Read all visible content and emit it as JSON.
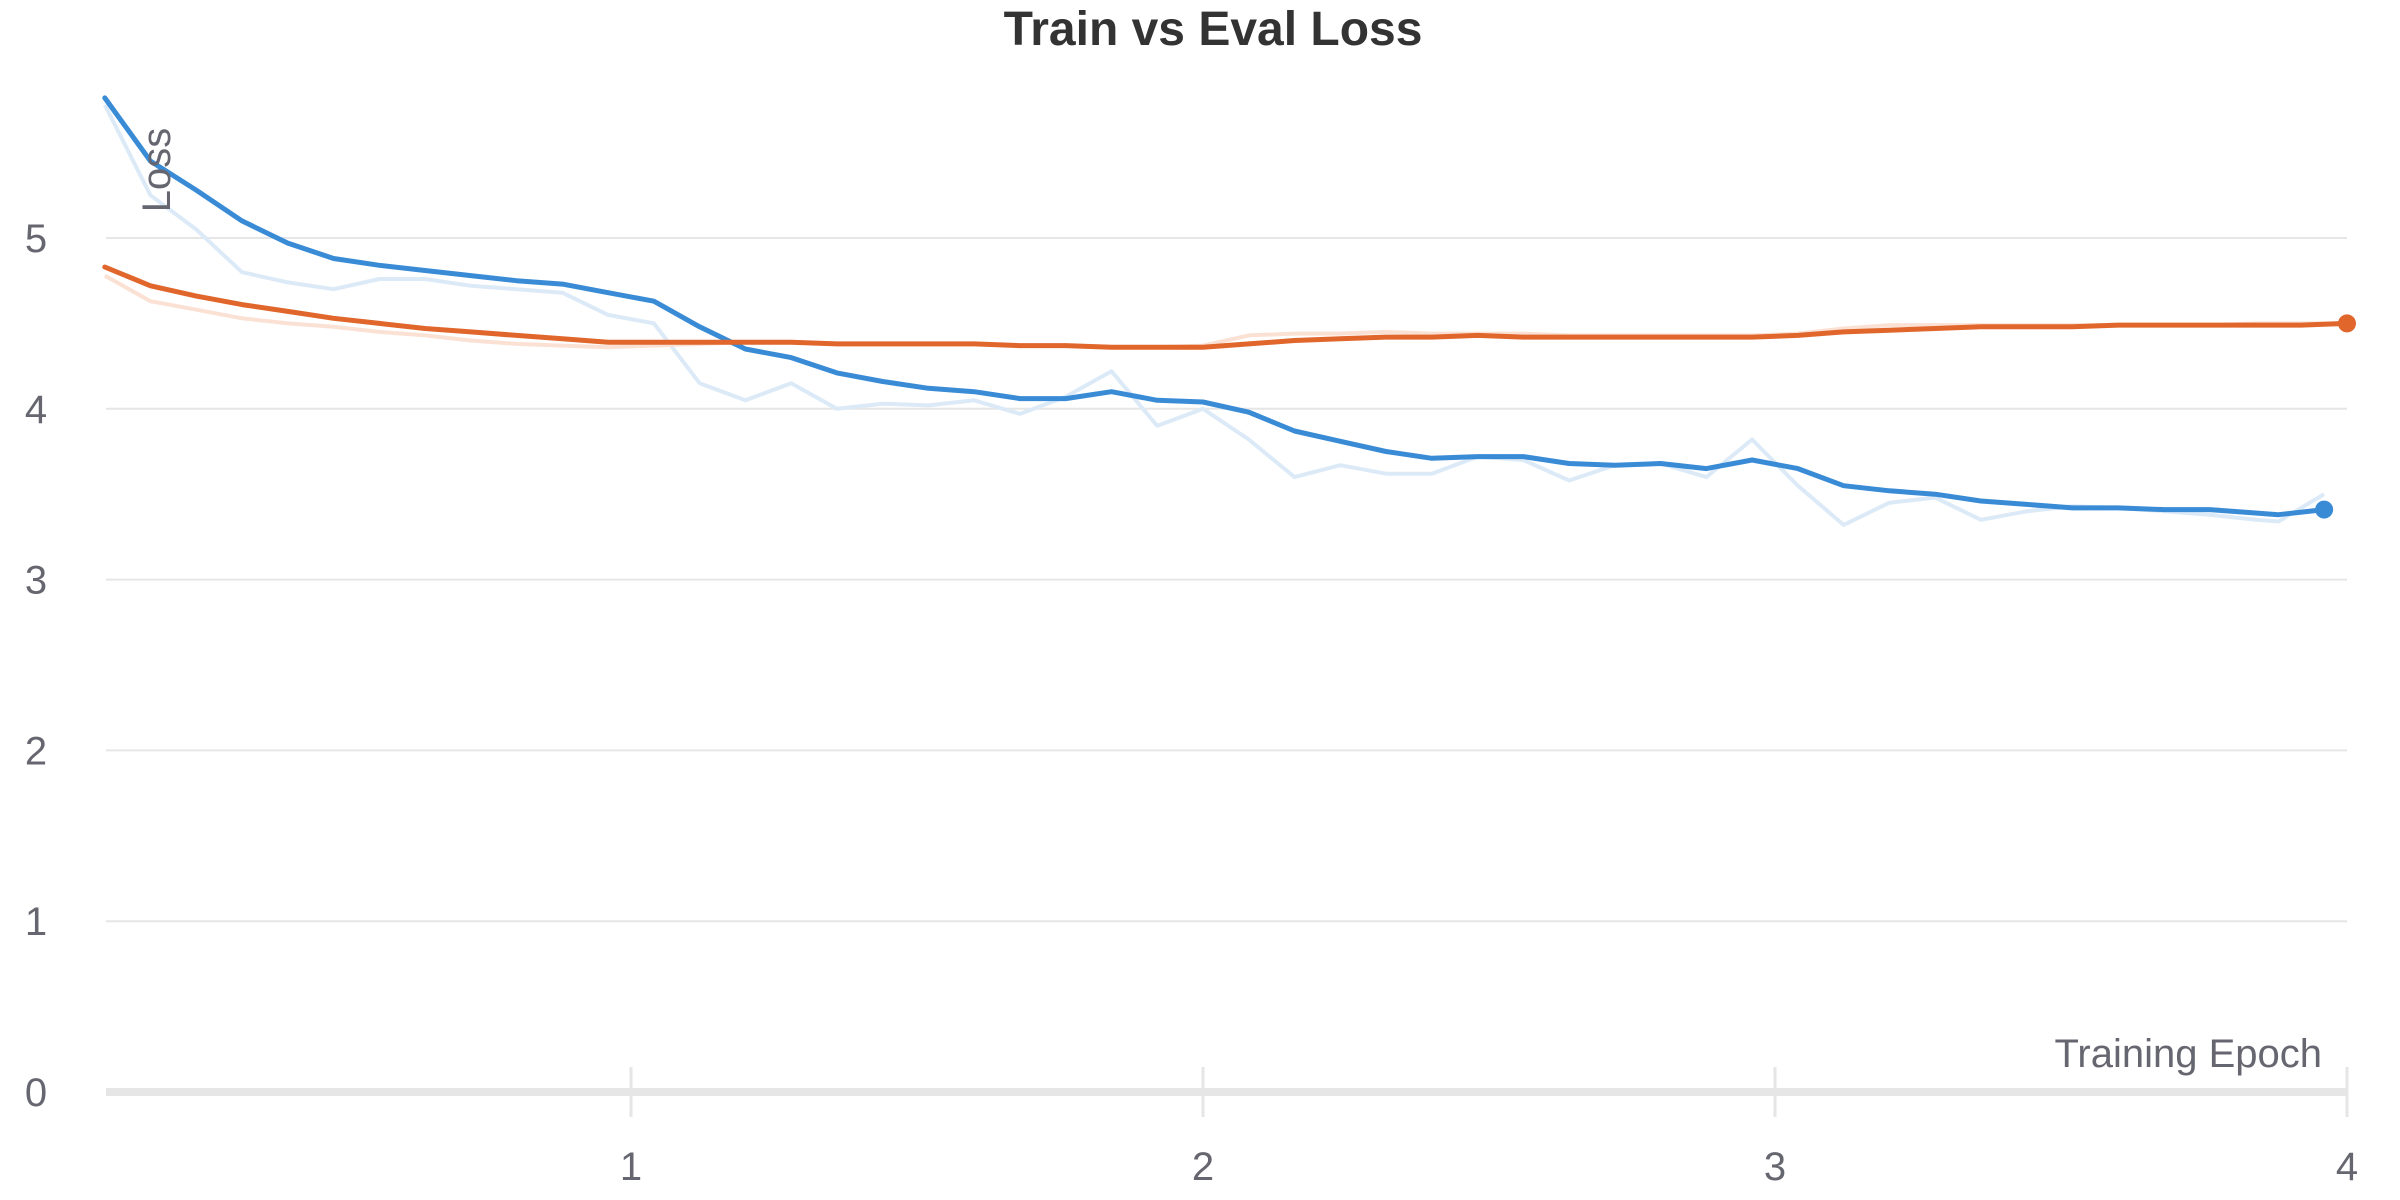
{
  "chart_data": {
    "type": "line",
    "title": "Train vs Eval Loss",
    "xlabel": "Training Epoch",
    "ylabel": "Loss",
    "xlim": [
      0.08,
      4.0
    ],
    "ylim": [
      0,
      6
    ],
    "x_ticks": [
      1,
      2,
      3,
      4
    ],
    "y_ticks": [
      0,
      1,
      2,
      3,
      4,
      5
    ],
    "grid": true,
    "legend": "none",
    "colors": {
      "train": "#3a8bd6",
      "eval": "#e0662c",
      "train_raw": "#dceaf8",
      "eval_raw": "#fbe1d4",
      "grid": "#e6e6e6",
      "axis": "#e6e6e6"
    },
    "series": [
      {
        "id": "train",
        "raw_id": "train_raw",
        "x": [
          0.08,
          0.16,
          0.24,
          0.32,
          0.4,
          0.48,
          0.56,
          0.64,
          0.72,
          0.8,
          0.88,
          0.96,
          1.04,
          1.12,
          1.2,
          1.28,
          1.36,
          1.44,
          1.52,
          1.6,
          1.68,
          1.76,
          1.84,
          1.92,
          2.0,
          2.08,
          2.16,
          2.24,
          2.32,
          2.4,
          2.48,
          2.56,
          2.64,
          2.72,
          2.8,
          2.88,
          2.96,
          3.04,
          3.12,
          3.2,
          3.28,
          3.36,
          3.44,
          3.52,
          3.6,
          3.68,
          3.76,
          3.84,
          3.88,
          3.96
        ],
        "smoothed": [
          5.82,
          5.45,
          5.28,
          5.1,
          4.97,
          4.88,
          4.84,
          4.81,
          4.78,
          4.75,
          4.73,
          4.68,
          4.63,
          4.48,
          4.35,
          4.3,
          4.21,
          4.16,
          4.12,
          4.1,
          4.06,
          4.06,
          4.1,
          4.05,
          4.04,
          3.98,
          3.87,
          3.81,
          3.75,
          3.71,
          3.72,
          3.72,
          3.68,
          3.67,
          3.68,
          3.65,
          3.7,
          3.65,
          3.55,
          3.52,
          3.5,
          3.46,
          3.44,
          3.42,
          3.42,
          3.41,
          3.41,
          3.39,
          3.38,
          3.41
        ],
        "raw": [
          5.78,
          5.25,
          5.05,
          4.8,
          4.74,
          4.7,
          4.76,
          4.76,
          4.72,
          4.7,
          4.68,
          4.55,
          4.5,
          4.15,
          4.05,
          4.15,
          4.0,
          4.03,
          4.02,
          4.05,
          3.97,
          4.07,
          4.22,
          3.9,
          4.0,
          3.82,
          3.6,
          3.67,
          3.62,
          3.62,
          3.72,
          3.7,
          3.58,
          3.67,
          3.68,
          3.6,
          3.82,
          3.55,
          3.32,
          3.45,
          3.48,
          3.35,
          3.4,
          3.43,
          3.42,
          3.4,
          3.38,
          3.35,
          3.34,
          3.5
        ]
      },
      {
        "id": "eval",
        "raw_id": "eval_raw",
        "x": [
          0.08,
          0.16,
          0.24,
          0.32,
          0.4,
          0.48,
          0.56,
          0.64,
          0.72,
          0.8,
          0.88,
          0.96,
          1.04,
          1.12,
          1.2,
          1.28,
          1.36,
          1.44,
          1.52,
          1.6,
          1.68,
          1.76,
          1.84,
          1.92,
          2.0,
          2.08,
          2.16,
          2.24,
          2.32,
          2.4,
          2.48,
          2.56,
          2.64,
          2.72,
          2.8,
          2.88,
          2.96,
          3.04,
          3.12,
          3.2,
          3.28,
          3.36,
          3.44,
          3.52,
          3.6,
          3.68,
          3.76,
          3.84,
          3.92,
          4.0
        ],
        "smoothed": [
          4.83,
          4.72,
          4.66,
          4.61,
          4.57,
          4.53,
          4.5,
          4.47,
          4.45,
          4.43,
          4.41,
          4.39,
          4.39,
          4.39,
          4.39,
          4.39,
          4.38,
          4.38,
          4.38,
          4.38,
          4.37,
          4.37,
          4.36,
          4.36,
          4.36,
          4.38,
          4.4,
          4.41,
          4.42,
          4.42,
          4.43,
          4.42,
          4.42,
          4.42,
          4.42,
          4.42,
          4.42,
          4.43,
          4.45,
          4.46,
          4.47,
          4.48,
          4.48,
          4.48,
          4.49,
          4.49,
          4.49,
          4.49,
          4.49,
          4.5
        ],
        "raw": [
          4.78,
          4.63,
          4.58,
          4.53,
          4.5,
          4.48,
          4.45,
          4.43,
          4.4,
          4.38,
          4.37,
          4.36,
          4.37,
          4.38,
          4.39,
          4.39,
          4.38,
          4.38,
          4.38,
          4.38,
          4.37,
          4.37,
          4.36,
          4.36,
          4.37,
          4.43,
          4.44,
          4.44,
          4.45,
          4.44,
          4.44,
          4.44,
          4.43,
          4.43,
          4.43,
          4.43,
          4.43,
          4.44,
          4.47,
          4.49,
          4.49,
          4.49,
          4.49,
          4.49,
          4.49,
          4.49,
          4.49,
          4.5,
          4.5,
          4.5
        ]
      }
    ]
  }
}
